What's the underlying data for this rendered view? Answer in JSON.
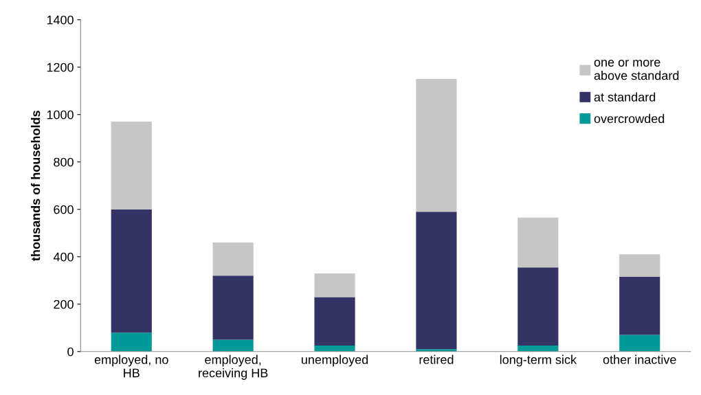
{
  "chart_data": {
    "type": "bar",
    "stacked": true,
    "ylabel": "thousands of households",
    "categories": [
      "employed, no\nHB",
      "employed,\nreceiving HB",
      "unemployed",
      "retired",
      "long-term sick",
      "other inactive"
    ],
    "series": [
      {
        "name": "overcrowded",
        "color": "#009999",
        "values": [
          80,
          50,
          25,
          10,
          25,
          70
        ]
      },
      {
        "name": "at standard",
        "color": "#333366",
        "values": [
          520,
          270,
          205,
          580,
          330,
          245
        ]
      },
      {
        "name": "one or more\nabove standard",
        "color": "#c6c6c6",
        "values": [
          370,
          140,
          100,
          560,
          210,
          95
        ]
      }
    ],
    "ylim": [
      0,
      1400
    ],
    "yticks": [
      0,
      200,
      400,
      600,
      800,
      1000,
      1200,
      1400
    ],
    "grid": false,
    "legend": "top right"
  }
}
